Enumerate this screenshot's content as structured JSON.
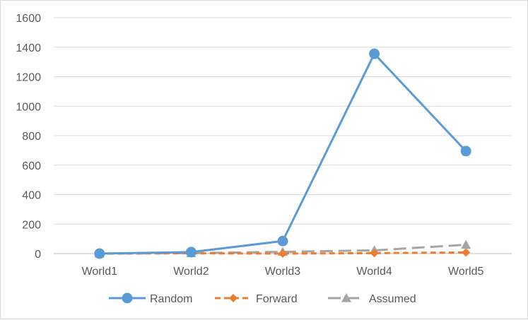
{
  "chart_data": {
    "type": "line",
    "categories": [
      "World1",
      "World2",
      "World3",
      "World4",
      "World5"
    ],
    "ylim": [
      0,
      1600
    ],
    "yticks": [
      "0",
      "200",
      "400",
      "600",
      "800",
      "1000",
      "1200",
      "1400",
      "1600"
    ],
    "grid": true,
    "legend_position": "bottom",
    "series": [
      {
        "name": "Random",
        "values": [
          0,
          10,
          85,
          1355,
          695
        ],
        "color": "#5b9bd5",
        "marker": "circle",
        "line_style": "solid"
      },
      {
        "name": "Forward",
        "values": [
          0,
          2,
          0,
          3,
          8
        ],
        "color": "#ed7d31",
        "marker": "diamond",
        "line_style": "dashed"
      },
      {
        "name": "Assumed",
        "values": [
          0,
          3,
          12,
          22,
          60
        ],
        "color": "#a5a5a5",
        "marker": "triangle",
        "line_style": "long-dash"
      }
    ]
  }
}
